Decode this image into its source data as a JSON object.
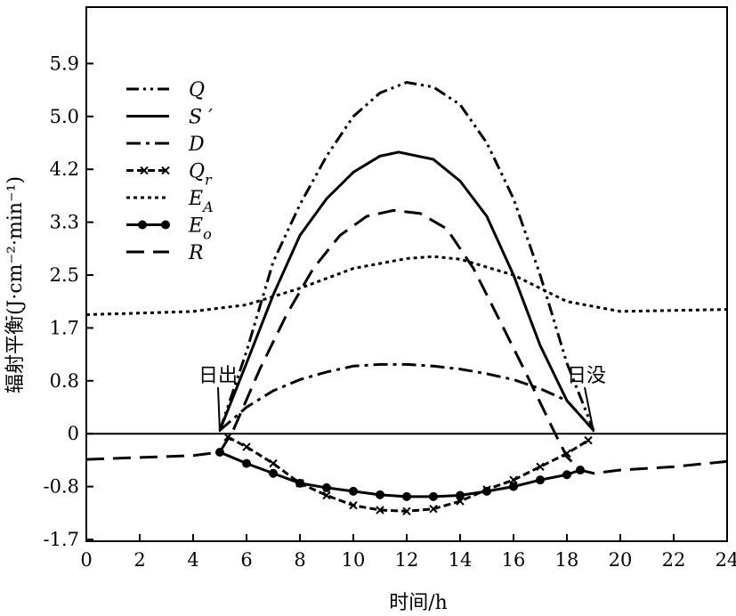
{
  "chart_data": {
    "type": "line",
    "title": "",
    "xlabel": "时间/h",
    "ylabel": "辐射平衡(J·cm⁻²·min⁻¹)",
    "xlim": [
      0,
      24
    ],
    "ylim": [
      -1.7,
      6.6
    ],
    "x_ticks": [
      0,
      2,
      4,
      6,
      8,
      10,
      12,
      14,
      16,
      18,
      20,
      22,
      24
    ],
    "x_tick_labels": [
      "0",
      "2",
      "4",
      "6",
      "8",
      "10",
      "12",
      "14",
      "16",
      "18",
      "20",
      "22",
      "24"
    ],
    "y_ticks": [
      -1.7,
      -0.8,
      0,
      0.8,
      1.7,
      2.5,
      3.3,
      4.2,
      5.0,
      5.9
    ],
    "y_tick_labels": [
      "-1.7",
      "-0.8",
      "0",
      "0.8",
      "1.7",
      "2.5",
      "3.3",
      "4.2",
      "5.0",
      "5.9"
    ],
    "grid": false,
    "legend_position": "top-left",
    "annotations": [
      {
        "text": "日出",
        "x": 5,
        "y": 0
      },
      {
        "text": "日没",
        "x": 19,
        "y": 0
      }
    ],
    "series": [
      {
        "name": "Q",
        "sub": "",
        "style": "dashdotdot",
        "points": [
          [
            5,
            0.05
          ],
          [
            6,
            1.3
          ],
          [
            7,
            2.7
          ],
          [
            8,
            3.6
          ],
          [
            9,
            4.4
          ],
          [
            10,
            5.0
          ],
          [
            11,
            5.4
          ],
          [
            12,
            5.58
          ],
          [
            13,
            5.5
          ],
          [
            14,
            5.2
          ],
          [
            15,
            4.6
          ],
          [
            16,
            3.7
          ],
          [
            17,
            2.5
          ],
          [
            18,
            1.1
          ],
          [
            19,
            0.05
          ]
        ]
      },
      {
        "name": "S ′",
        "sub": "",
        "style": "solid",
        "points": [
          [
            5,
            0.05
          ],
          [
            6,
            1.1
          ],
          [
            7,
            2.2
          ],
          [
            8,
            3.1
          ],
          [
            9,
            3.7
          ],
          [
            10,
            4.15
          ],
          [
            11,
            4.4
          ],
          [
            11.7,
            4.46
          ],
          [
            13,
            4.35
          ],
          [
            14,
            4.0
          ],
          [
            15,
            3.4
          ],
          [
            16,
            2.5
          ],
          [
            17,
            1.4
          ],
          [
            18,
            0.5
          ],
          [
            19,
            0.05
          ]
        ]
      },
      {
        "name": "D",
        "sub": "",
        "style": "dashdot",
        "points": [
          [
            5,
            0.05
          ],
          [
            6,
            0.4
          ],
          [
            7,
            0.65
          ],
          [
            8,
            0.82
          ],
          [
            9,
            0.95
          ],
          [
            10,
            1.05
          ],
          [
            11,
            1.08
          ],
          [
            12,
            1.08
          ],
          [
            13,
            1.05
          ],
          [
            14,
            1.0
          ],
          [
            15,
            0.92
          ],
          [
            16,
            0.82
          ],
          [
            17,
            0.68
          ],
          [
            18,
            0.5
          ],
          [
            19,
            0.05
          ]
        ]
      },
      {
        "name": "Q",
        "sub": "r",
        "style": "cross",
        "points": [
          [
            5.3,
            -0.05
          ],
          [
            6,
            -0.2
          ],
          [
            7,
            -0.45
          ],
          [
            8,
            -0.75
          ],
          [
            9,
            -0.95
          ],
          [
            10,
            -1.12
          ],
          [
            11,
            -1.2
          ],
          [
            12,
            -1.22
          ],
          [
            13,
            -1.18
          ],
          [
            14,
            -1.05
          ],
          [
            15,
            -0.85
          ],
          [
            16,
            -0.7
          ],
          [
            17,
            -0.5
          ],
          [
            18,
            -0.3
          ],
          [
            18.8,
            -0.1
          ]
        ]
      },
      {
        "name": "E",
        "sub": "A",
        "style": "dotted",
        "points": [
          [
            0,
            1.9
          ],
          [
            4,
            1.95
          ],
          [
            6,
            2.05
          ],
          [
            8,
            2.3
          ],
          [
            10,
            2.6
          ],
          [
            12,
            2.75
          ],
          [
            13,
            2.78
          ],
          [
            14,
            2.74
          ],
          [
            16,
            2.5
          ],
          [
            18,
            2.1
          ],
          [
            20,
            1.95
          ],
          [
            24,
            1.98
          ]
        ]
      },
      {
        "name": "E",
        "sub": "o",
        "style": "dot",
        "points": [
          [
            5,
            -0.28
          ],
          [
            6,
            -0.45
          ],
          [
            7,
            -0.6
          ],
          [
            8,
            -0.75
          ],
          [
            9,
            -0.82
          ],
          [
            10,
            -0.88
          ],
          [
            11,
            -0.94
          ],
          [
            12,
            -0.97
          ],
          [
            13,
            -0.97
          ],
          [
            14,
            -0.95
          ],
          [
            15,
            -0.88
          ],
          [
            16,
            -0.8
          ],
          [
            17,
            -0.7
          ],
          [
            18,
            -0.62
          ],
          [
            18.5,
            -0.55
          ]
        ]
      },
      {
        "name": "R",
        "sub": "",
        "style": "longdash",
        "points": [
          [
            0,
            -0.39
          ],
          [
            4,
            -0.33
          ],
          [
            5,
            -0.28
          ],
          [
            5.5,
            0.05
          ],
          [
            6.5,
            1.0
          ],
          [
            7.5,
            1.9
          ],
          [
            8.5,
            2.6
          ],
          [
            9.5,
            3.1
          ],
          [
            10.5,
            3.4
          ],
          [
            11.5,
            3.5
          ],
          [
            12.5,
            3.45
          ],
          [
            13.5,
            3.2
          ],
          [
            14.5,
            2.6
          ],
          [
            15.5,
            1.8
          ],
          [
            16.5,
            0.9
          ],
          [
            17.5,
            0.05
          ],
          [
            18,
            -0.35
          ],
          [
            18.5,
            -0.55
          ],
          [
            19,
            -0.6
          ],
          [
            20,
            -0.55
          ],
          [
            22,
            -0.5
          ],
          [
            24,
            -0.42
          ]
        ]
      }
    ]
  }
}
